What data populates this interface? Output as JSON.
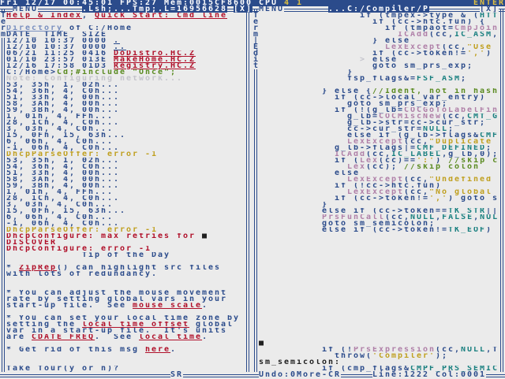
{
  "colors": {
    "b": "#2b4b8b",
    "r": "#b0102a",
    "y": "#c0a020",
    "g": "#5a8a20",
    "c": "#1a8080",
    "p": "#b080a8",
    "f": "#c4c4cc",
    "lb": "#7a90c0",
    "k": "#202020"
  },
  "topbar": {
    "status": "Fri 12/17 00:45:01 FPS:27 Mem:0015CF8600 CPU ",
    "cpu": "4 1",
    "mode": "ENTER"
  },
  "left": {
    "menu": "MENU",
    "title": ".Lsh;...Tmp;.L=16956628",
    "close": "[X]",
    "side": "Term",
    "bottom": "SR",
    "lines": [
      [
        [
          "Help & Index",
          "r",
          1
        ],
        [
          ", ",
          "b"
        ],
        [
          "Quick Start: Cmd line",
          "r",
          1
        ]
      ],
      [],
      [
        [
          "Directory",
          "lb",
          1
        ],
        [
          " of C:/Home",
          "b"
        ]
      ],
      [
        [
          "DATE_ TIME_ SIZE",
          "b"
        ]
      ],
      [
        [
          "12/10 10:37 0000 ",
          "b"
        ],
        [
          ".",
          "b",
          1
        ]
      ],
      [
        [
          "12/10 10:37 0000 ",
          "b"
        ],
        [
          "..",
          "b",
          1
        ]
      ],
      [
        [
          "06/21 11:25 0416 ",
          "b"
        ],
        [
          "DoDistro.HC.Z",
          "r",
          1
        ]
      ],
      [
        [
          "01/10 23:57 013E ",
          "b"
        ],
        [
          "MakeHome.HC.Z",
          "r",
          1
        ]
      ],
      [
        [
          "12/16 17:58 01D3 ",
          "b"
        ],
        [
          "Registry.HC.Z",
          "r",
          1
        ]
      ],
      [
        [
          "C:/Home>",
          "b"
        ],
        [
          "Cd;#include \"Once\";",
          "g"
        ]
      ],
      [
        [
          "Note: Configuring network...",
          "f"
        ]
      ],
      [
        [
          "53, 35h, 1, 02h...",
          "b"
        ]
      ],
      [
        [
          "54, 36h, 4, C0h...",
          "b"
        ]
      ],
      [
        [
          "51, 33h, 4, 00h...",
          "b"
        ]
      ],
      [
        [
          "58, 3Ah, 4, 00h...",
          "b"
        ]
      ],
      [
        [
          "59, 3Bh, 4, 00h...",
          "b"
        ]
      ],
      [
        [
          "1, 01h, 4, FFh...",
          "b"
        ]
      ],
      [
        [
          "28, 1Ch, 4, C0h...",
          "b"
        ]
      ],
      [
        [
          "3, 03h, 4, C0h...",
          "b"
        ]
      ],
      [
        [
          "15, 0Fh, 15, 63h...",
          "b"
        ]
      ],
      [
        [
          "6, 06h, 4, C0h...",
          "b"
        ]
      ],
      [
        [
          "-1, 06h, 4, C0h...",
          "b"
        ]
      ],
      [
        [
          "DhcpParseOffer: error -1",
          "y"
        ]
      ],
      [
        [
          "53, 35h, 1, 02h...",
          "b"
        ]
      ],
      [
        [
          "54, 36h, 4, C0h...",
          "b"
        ]
      ],
      [
        [
          "51, 33h, 4, 00h...",
          "b"
        ]
      ],
      [
        [
          "58, 3Ah, 4, 00h...",
          "b"
        ]
      ],
      [
        [
          "59, 3Bh, 4, 00h...",
          "b"
        ]
      ],
      [
        [
          "1, 01h, 4, FFh...",
          "b"
        ]
      ],
      [
        [
          "28, 1Ch, 4, C0h...",
          "b"
        ]
      ],
      [
        [
          "3, 03h, 4, C0h...",
          "b"
        ]
      ],
      [
        [
          "15, 0Fh, 15, 63h...",
          "b"
        ]
      ],
      [
        [
          "6, 06h, 4, C0h...",
          "b"
        ]
      ],
      [
        [
          "-1, 06h, 4, C0h...",
          "b"
        ]
      ],
      [
        [
          "DhcpParseOffer: error -1",
          "y"
        ]
      ],
      [
        [
          "DhcpConfigure: max retries for ",
          "r"
        ],
        [
          "■",
          "k"
        ]
      ],
      [
        [
          "DISCOVER",
          "r"
        ]
      ],
      [
        [
          "DhcpConfigure: error -1",
          "r"
        ]
      ],
      [
        [
          "            Tip of the Day",
          "b"
        ]
      ],
      [],
      [
        [
          "* ",
          "b"
        ],
        [
          "ZipRep",
          "r",
          1
        ],
        [
          "() can highlight src files",
          "b"
        ]
      ],
      [
        [
          "with lots of redundancy.",
          "b"
        ]
      ],
      [],
      [],
      [
        [
          "* You can adjust the mouse movement",
          "b"
        ]
      ],
      [
        [
          "rate by setting global vars in your",
          "b"
        ]
      ],
      [
        [
          "start-up file.  See ",
          "b"
        ],
        [
          "mouse scale",
          "r",
          1
        ],
        [
          ".",
          "b"
        ]
      ],
      [],
      [
        [
          "* You can set your local time zone by",
          "b"
        ]
      ],
      [
        [
          "setting the ",
          "b"
        ],
        [
          "local_time_offset",
          "r",
          1
        ],
        [
          " global",
          "b"
        ]
      ],
      [
        [
          "var in a start-up file.  It's units",
          "b"
        ]
      ],
      [
        [
          "are ",
          "b"
        ],
        [
          "CDATE_FREQ",
          "r",
          1
        ],
        [
          ".  See ",
          "b"
        ],
        [
          "local time",
          "r",
          1
        ],
        [
          ".",
          "b"
        ]
      ],
      [],
      [
        [
          "* Get rid of this msg ",
          "b"
        ],
        [
          "here",
          "r",
          1
        ],
        [
          ".",
          "b"
        ]
      ],
      [],
      [],
      [
        [
          "Take Tour(y or n)?",
          "b"
        ]
      ]
    ]
  },
  "right": {
    "menu": "MENU",
    "title": "...C:/Compiler/P",
    "close": "[X]",
    "side": "Term|Edit",
    "status_undo": "Undo:0More-CR",
    "status_pos": "Line:1222 Col:0001",
    "lines": [
      [
        [
          "                if (tmpex->type & (",
          "b"
        ],
        [
          "HTT",
          "c"
        ]
      ],
      [
        [
          "                  if (cc->htc.fun) {",
          "b"
        ]
      ],
      [
        [
          "                    if (tmpaot=",
          "b"
        ],
        [
          "CmpJoin",
          "p"
        ]
      ],
      [
        [
          "                      ",
          "b"
        ],
        [
          "ICAdd",
          "p"
        ],
        [
          "(cc,",
          "b"
        ],
        [
          "IC_ASM",
          "c"
        ],
        [
          ",",
          "b"
        ]
      ],
      [
        [
          "                  } else",
          "b"
        ]
      ],
      [
        [
          "                    ",
          "b"
        ],
        [
          "LexExcept",
          "p"
        ],
        [
          "(cc,",
          "b"
        ],
        [
          "\"Use",
          "y"
        ]
      ],
      [
        [
          "                  if (cc->token!=",
          "b"
        ],
        [
          "','",
          "y"
        ],
        [
          ")",
          "b"
        ]
      ],
      [
        [
          "                ",
          "b"
        ],
        [
          "> ",
          "f"
        ],
        [
          "else",
          "b"
        ]
      ],
      [
        [
          "                  goto sm_prs_exp;",
          "b"
        ]
      ],
      [
        [
          "              }",
          "b"
        ]
      ],
      [
        [
          "              fsp_flags&=",
          "b"
        ],
        [
          "FSF_ASM",
          "c"
        ],
        [
          ";",
          "b"
        ]
      ],
      [],
      [
        [
          "          } else {",
          "b"
        ],
        [
          "//Ident, not in hash",
          "g"
        ]
      ],
      [
        [
          "            if (cc->local_var_entry)",
          "b"
        ]
      ],
      [
        [
          "              goto sm_prs_exp;",
          "b"
        ]
      ],
      [
        [
          "            if (!(g_lb=",
          "b"
        ],
        [
          "COCGoToLabelFin",
          "p"
        ]
      ],
      [
        [
          "              g_lb=",
          "b"
        ],
        [
          "COCMiscNew",
          "p"
        ],
        [
          "(cc,",
          "b"
        ],
        [
          "CMT_G",
          "c"
        ]
      ],
      [
        [
          "              g_lb->str=cc->cur_str;",
          "b"
        ]
      ],
      [
        [
          "              cc->cur_str=",
          "b"
        ],
        [
          "NULL",
          "c"
        ],
        [
          ";",
          "b"
        ]
      ],
      [
        [
          "              else if (g_lb->flags&",
          "b"
        ],
        [
          "CMF",
          "c"
        ]
      ],
      [
        [
          "              ",
          "b"
        ],
        [
          "LexExcept",
          "p"
        ],
        [
          "(cc,",
          "b"
        ],
        [
          "\"Duplicate",
          "y"
        ]
      ],
      [
        [
          "            g_lb->flags|=",
          "b"
        ],
        [
          "CMF_DEFINED",
          "c"
        ],
        [
          ";",
          "b"
        ]
      ],
      [
        [
          "            ",
          "b"
        ],
        [
          "ICAdd",
          "p"
        ],
        [
          "(cc,",
          "b"
        ],
        [
          "IC_LABEL",
          "c"
        ],
        [
          ",g_lb,0);",
          "b"
        ]
      ],
      [
        [
          "            if (",
          "b"
        ],
        [
          "Lex",
          "p"
        ],
        [
          "(cc)==",
          "b"
        ],
        [
          "':'",
          "y"
        ],
        [
          ") ",
          "b"
        ],
        [
          "//skip c",
          "g"
        ]
      ],
      [
        [
          "              ",
          "b"
        ],
        [
          "Lex",
          "p"
        ],
        [
          "(cc); ",
          "b"
        ],
        [
          "//skip colon",
          "g"
        ]
      ],
      [
        [
          "            else",
          "b"
        ]
      ],
      [
        [
          "              ",
          "b"
        ],
        [
          "LexExcept",
          "p"
        ],
        [
          "(cc,",
          "b"
        ],
        [
          "\"Undefined",
          "y"
        ]
      ],
      [
        [
          "            if (!cc->htc.fun)",
          "b"
        ]
      ],
      [
        [
          "              ",
          "b"
        ],
        [
          "LexExcept",
          "p"
        ],
        [
          "(cc,",
          "b"
        ],
        [
          "\"No global",
          "y"
        ]
      ],
      [
        [
          "            if (cc->token!=",
          "b"
        ],
        [
          "','",
          "y"
        ],
        [
          ") goto s",
          "b"
        ]
      ],
      [
        [
          "          }",
          "b"
        ]
      ],
      [
        [
          "          else if (cc->token==",
          "b"
        ],
        [
          "TK_STR",
          "c"
        ],
        [
          "||",
          "b"
        ]
      ],
      [
        [
          "          ",
          "b"
        ],
        [
          "PrsFunCall",
          "p"
        ],
        [
          "(cc,",
          "b"
        ],
        [
          "NULL",
          "c"
        ],
        [
          ",",
          "b"
        ],
        [
          "FALSE",
          "c"
        ],
        [
          ",",
          "b"
        ],
        [
          "NUL",
          "c"
        ]
      ],
      [
        [
          "          goto sm_semicolon;",
          "b"
        ]
      ],
      [
        [
          "          else if (cc->token!=",
          "b"
        ],
        [
          "TK_EOF",
          "c"
        ],
        [
          ")",
          "b"
        ]
      ],
      [],
      [],
      [],
      [],
      [],
      [],
      [],
      [],
      [],
      [],
      [],
      [],
      [],
      [],
      [],
      [],
      [],
      [
        [
          "■",
          "k"
        ]
      ],
      [
        [
          "          if (!",
          "b"
        ],
        [
          "PrsExpression",
          "p"
        ],
        [
          "(cc,",
          "b"
        ],
        [
          "NULL",
          "c"
        ],
        [
          ",T",
          "b"
        ]
      ],
      [
        [
          "            throw(",
          "b"
        ],
        [
          "'Compiler'",
          "y"
        ],
        [
          ");",
          "b"
        ]
      ],
      [
        [
          "sm_semicolon:",
          "k"
        ]
      ],
      [
        [
          "          if (cmp_flags&",
          "b"
        ],
        [
          "CMPF_PRS_SEMIC",
          "c"
        ]
      ]
    ]
  }
}
